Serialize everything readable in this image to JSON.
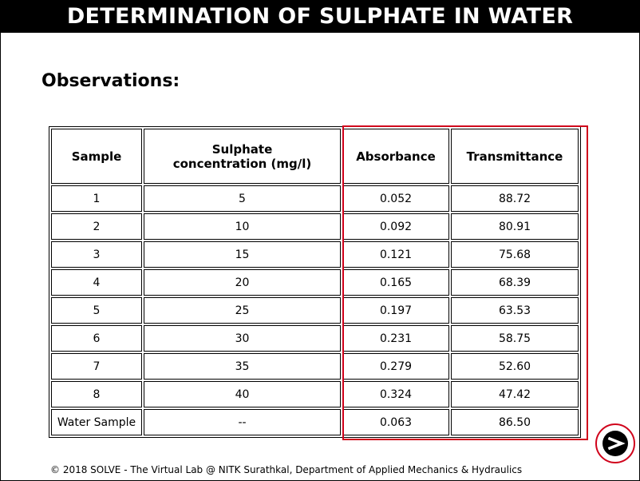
{
  "header": {
    "title": "DETERMINATION OF SULPHATE IN WATER"
  },
  "page": {
    "heading": "Observations:"
  },
  "table": {
    "columns": [
      "Sample",
      "Sulphate concentration (mg/l)",
      "Absorbance",
      "Transmittance"
    ],
    "rows": [
      [
        "1",
        "5",
        "0.052",
        "88.72"
      ],
      [
        "2",
        "10",
        "0.092",
        "80.91"
      ],
      [
        "3",
        "15",
        "0.121",
        "75.68"
      ],
      [
        "4",
        "20",
        "0.165",
        "68.39"
      ],
      [
        "5",
        "25",
        "0.197",
        "63.53"
      ],
      [
        "6",
        "30",
        "0.231",
        "58.75"
      ],
      [
        "7",
        "35",
        "0.279",
        "52.60"
      ],
      [
        "8",
        "40",
        "0.324",
        "47.42"
      ],
      [
        "Water Sample",
        "--",
        "0.063",
        "86.50"
      ]
    ]
  },
  "footer": {
    "text": "© 2018 SOLVE - The Virtual Lab @ NITK Surathkal, Department of Applied Mechanics & Hydraulics"
  },
  "nav": {
    "next_icon": "next-arrow-icon"
  },
  "colors": {
    "title_bg": "#000000",
    "title_fg": "#ffffff",
    "highlight": "#d0021b"
  }
}
